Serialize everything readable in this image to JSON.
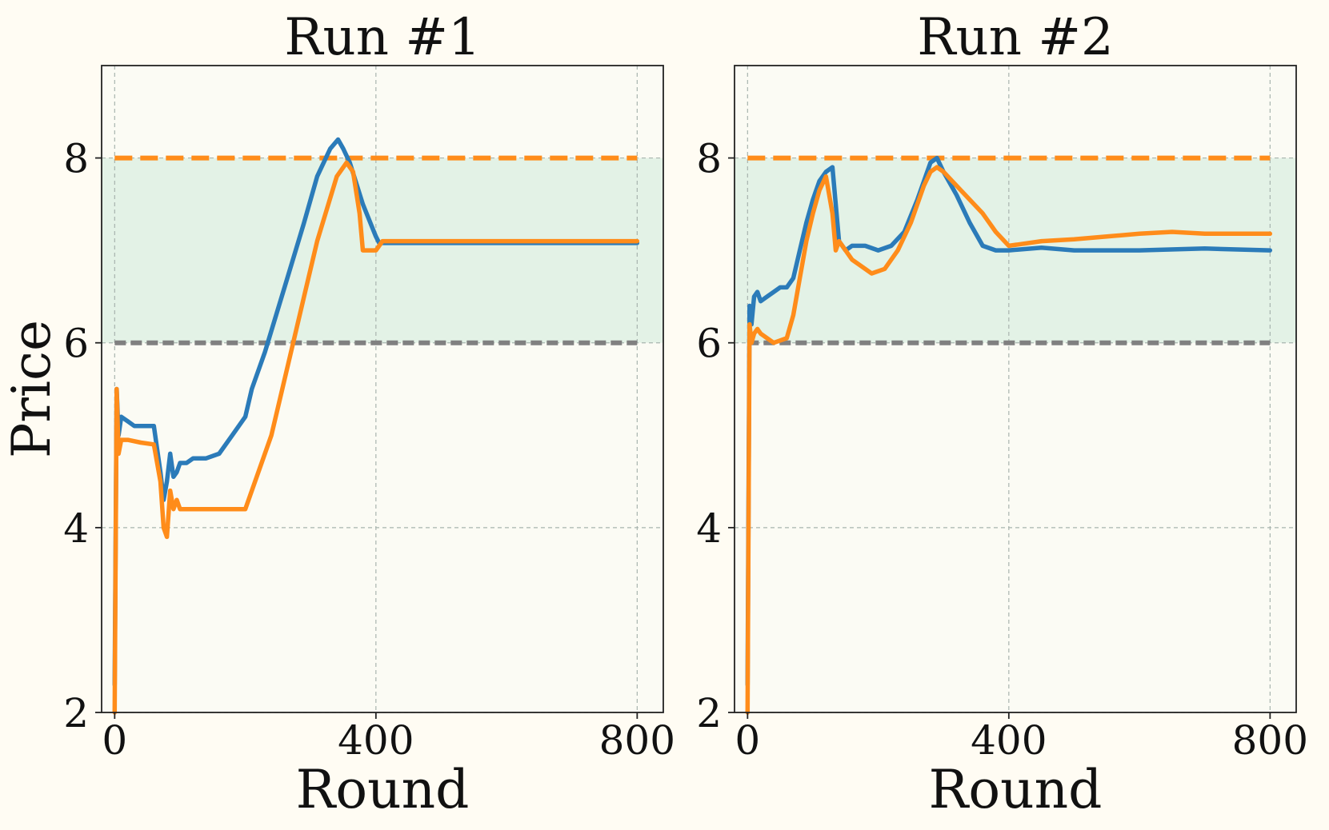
{
  "chart_data": [
    {
      "type": "line",
      "title": "Run #1",
      "xlabel": "Round",
      "ylabel": "Price",
      "xlim": [
        -20,
        840
      ],
      "ylim": [
        2,
        9
      ],
      "xticks": [
        0,
        400,
        800
      ],
      "yticks": [
        2,
        4,
        6,
        8
      ],
      "grid": true,
      "shaded_band": {
        "y0": 6,
        "y1": 8,
        "color": "#e3f2e6"
      },
      "reference_lines": [
        {
          "y": 8,
          "style": "dashed",
          "color": "#ff8c1a"
        },
        {
          "y": 6,
          "style": "dashed",
          "color": "#808080"
        }
      ],
      "series": [
        {
          "color": "#2b7bb9",
          "x": [
            0,
            3,
            6,
            10,
            20,
            30,
            40,
            60,
            70,
            75,
            80,
            85,
            90,
            95,
            100,
            110,
            120,
            140,
            160,
            180,
            200,
            210,
            230,
            260,
            290,
            310,
            330,
            342,
            350,
            360,
            380,
            400,
            405,
            420,
            500,
            600,
            700,
            800
          ],
          "y": [
            2.3,
            5.5,
            5.0,
            5.2,
            5.15,
            5.1,
            5.1,
            5.1,
            4.6,
            4.3,
            4.5,
            4.8,
            4.55,
            4.6,
            4.7,
            4.7,
            4.75,
            4.75,
            4.8,
            5.0,
            5.2,
            5.5,
            5.9,
            6.6,
            7.3,
            7.8,
            8.1,
            8.2,
            8.1,
            7.95,
            7.5,
            7.15,
            7.08,
            7.08,
            7.08,
            7.08,
            7.08,
            7.08
          ]
        },
        {
          "color": "#ff8c1a",
          "x": [
            0,
            3,
            6,
            10,
            20,
            40,
            60,
            70,
            75,
            80,
            85,
            90,
            95,
            100,
            110,
            130,
            160,
            200,
            240,
            270,
            290,
            310,
            340,
            355,
            365,
            375,
            380,
            390,
            400,
            410,
            430,
            500,
            600,
            700,
            800
          ],
          "y": [
            2.0,
            5.5,
            4.8,
            4.95,
            4.95,
            4.92,
            4.9,
            4.5,
            4.0,
            3.9,
            4.4,
            4.2,
            4.3,
            4.2,
            4.2,
            4.2,
            4.2,
            4.2,
            5.0,
            5.9,
            6.5,
            7.1,
            7.8,
            7.95,
            7.85,
            7.4,
            7.0,
            7.0,
            7.0,
            7.1,
            7.1,
            7.1,
            7.1,
            7.1,
            7.1
          ]
        }
      ]
    },
    {
      "type": "line",
      "title": "Run #2",
      "xlabel": "Round",
      "ylabel": "",
      "xlim": [
        -20,
        840
      ],
      "ylim": [
        2,
        9
      ],
      "xticks": [
        0,
        400,
        800
      ],
      "yticks": [
        2,
        4,
        6,
        8
      ],
      "grid": true,
      "shaded_band": {
        "y0": 6,
        "y1": 8,
        "color": "#e3f2e6"
      },
      "reference_lines": [
        {
          "y": 8,
          "style": "dashed",
          "color": "#ff8c1a"
        },
        {
          "y": 6,
          "style": "dashed",
          "color": "#808080"
        }
      ],
      "series": [
        {
          "color": "#2b7bb9",
          "x": [
            0,
            3,
            6,
            10,
            15,
            20,
            30,
            40,
            50,
            60,
            70,
            80,
            90,
            100,
            110,
            120,
            130,
            140,
            150,
            160,
            180,
            200,
            220,
            240,
            260,
            280,
            290,
            300,
            320,
            340,
            360,
            380,
            400,
            450,
            500,
            600,
            700,
            800
          ],
          "y": [
            2.3,
            6.4,
            6.2,
            6.5,
            6.55,
            6.45,
            6.5,
            6.55,
            6.6,
            6.6,
            6.7,
            7.0,
            7.3,
            7.55,
            7.75,
            7.85,
            7.9,
            7.1,
            7.0,
            7.05,
            7.05,
            7.0,
            7.05,
            7.2,
            7.55,
            7.95,
            8.0,
            7.85,
            7.6,
            7.3,
            7.05,
            7.0,
            7.0,
            7.03,
            7.0,
            7.0,
            7.02,
            7.0
          ]
        },
        {
          "color": "#ff8c1a",
          "x": [
            0,
            3,
            6,
            10,
            15,
            20,
            40,
            60,
            70,
            80,
            90,
            100,
            110,
            120,
            130,
            135,
            140,
            150,
            160,
            170,
            190,
            210,
            230,
            250,
            270,
            280,
            290,
            300,
            320,
            340,
            360,
            380,
            400,
            450,
            500,
            550,
            600,
            650,
            700,
            800
          ],
          "y": [
            2.0,
            6.2,
            6.0,
            6.1,
            6.15,
            6.1,
            6.0,
            6.05,
            6.3,
            6.7,
            7.1,
            7.4,
            7.65,
            7.8,
            7.4,
            7.0,
            7.1,
            7.0,
            6.9,
            6.85,
            6.75,
            6.8,
            7.0,
            7.3,
            7.7,
            7.85,
            7.9,
            7.85,
            7.7,
            7.55,
            7.4,
            7.2,
            7.05,
            7.1,
            7.12,
            7.15,
            7.18,
            7.2,
            7.18,
            7.18
          ]
        }
      ]
    }
  ]
}
